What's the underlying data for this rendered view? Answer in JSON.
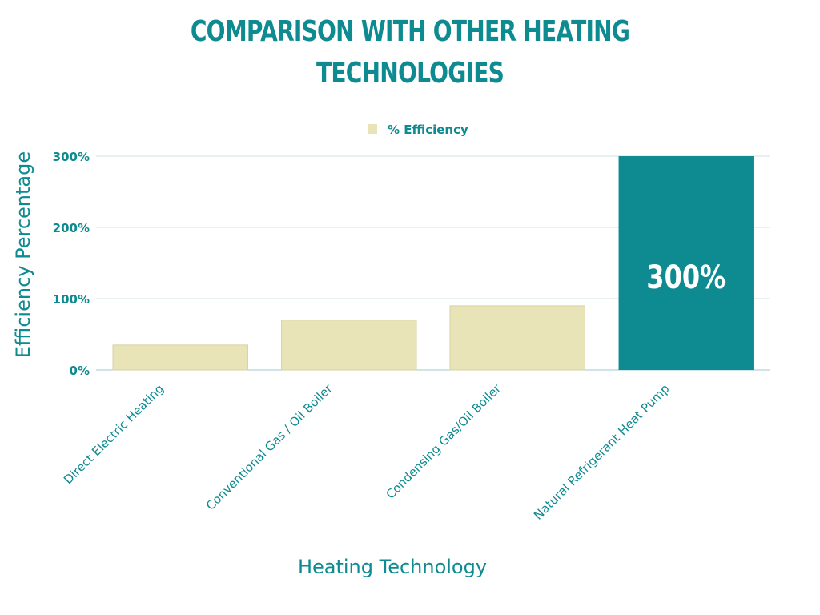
{
  "page": {
    "title_line1": "COMPARISON WITH OTHER HEATING",
    "title_line2": "TECHNOLOGIES"
  },
  "colors": {
    "accent": "#0e8a91",
    "bar_default": "#e8e4b8",
    "bar_highlight": "#0e8a91",
    "gridline": "#cfe3e4"
  },
  "chart_data": {
    "type": "bar",
    "title": "COMPARISON WITH OTHER HEATING TECHNOLOGIES",
    "xlabel": "Heating Technology",
    "ylabel": "Efficiency Percentage",
    "categories": [
      "Direct Electric Heating",
      "Conventional Gas / Oil Boiler",
      "Condensing Gas/Oil Boiler",
      "Natural Refrigerant Heat Pump"
    ],
    "series": [
      {
        "name": "% Efficiency",
        "values": [
          35,
          70,
          90,
          300
        ]
      }
    ],
    "highlight_index": 3,
    "ylim": [
      0,
      300
    ],
    "yticks": [
      0,
      100,
      200,
      300
    ],
    "ytick_labels": [
      "0%",
      "100%",
      "200%",
      "300%"
    ],
    "data_labels": [
      {
        "index": 3,
        "text": "300%"
      }
    ],
    "legend": {
      "label": "% Efficiency",
      "placement": "top-center"
    },
    "grid": true
  }
}
